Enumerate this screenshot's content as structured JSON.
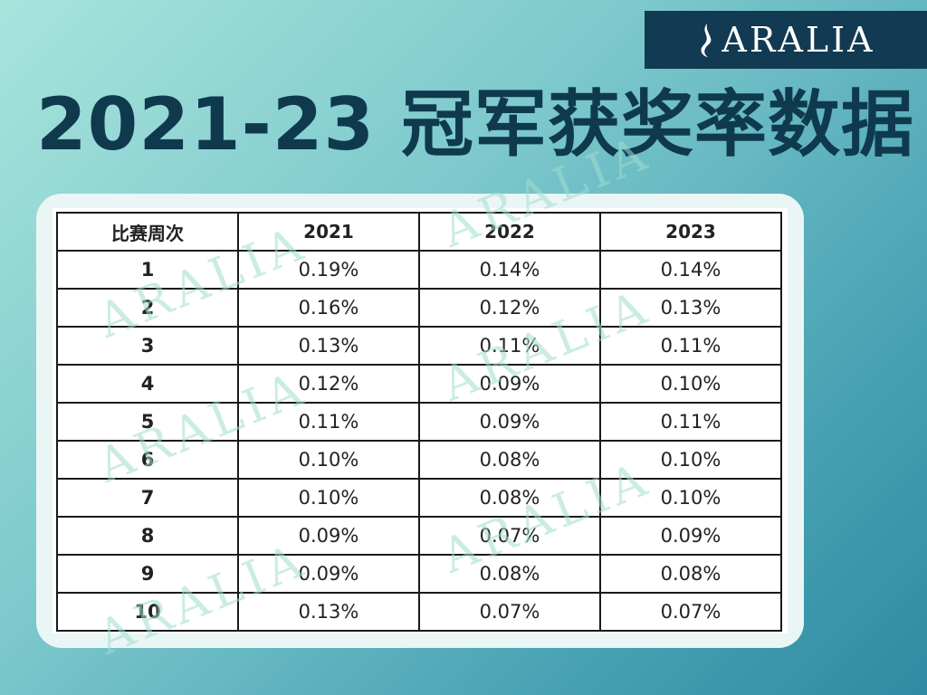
{
  "brand": {
    "name": "ARALIA",
    "icon": "flame-logo-icon"
  },
  "title": "2021-23 冠军获奖率数据",
  "watermark": "ARALIA",
  "table": {
    "headers": [
      "比赛周次",
      "2021",
      "2022",
      "2023"
    ],
    "rows": [
      [
        "1",
        "0.19%",
        "0.14%",
        "0.14%"
      ],
      [
        "2",
        "0.16%",
        "0.12%",
        "0.13%"
      ],
      [
        "3",
        "0.13%",
        "0.11%",
        "0.11%"
      ],
      [
        "4",
        "0.12%",
        "0.09%",
        "0.10%"
      ],
      [
        "5",
        "0.11%",
        "0.09%",
        "0.11%"
      ],
      [
        "6",
        "0.10%",
        "0.08%",
        "0.10%"
      ],
      [
        "7",
        "0.10%",
        "0.08%",
        "0.10%"
      ],
      [
        "8",
        "0.09%",
        "0.07%",
        "0.09%"
      ],
      [
        "9",
        "0.09%",
        "0.08%",
        "0.08%"
      ],
      [
        "10",
        "0.13%",
        "0.07%",
        "0.07%"
      ]
    ]
  },
  "colors": {
    "brand_bar": "#123a52",
    "title_text": "#0f3a4e",
    "panel": "#eaf6f5"
  },
  "chart_data": {
    "type": "table",
    "title": "2021-23 冠军获奖率数据",
    "columns": [
      "比赛周次",
      "2021",
      "2022",
      "2023"
    ],
    "categories": [
      "1",
      "2",
      "3",
      "4",
      "5",
      "6",
      "7",
      "8",
      "9",
      "10"
    ],
    "series": [
      {
        "name": "2021",
        "values": [
          0.19,
          0.16,
          0.13,
          0.12,
          0.11,
          0.1,
          0.1,
          0.09,
          0.09,
          0.13
        ]
      },
      {
        "name": "2022",
        "values": [
          0.14,
          0.12,
          0.11,
          0.09,
          0.09,
          0.08,
          0.08,
          0.07,
          0.08,
          0.07
        ]
      },
      {
        "name": "2023",
        "values": [
          0.14,
          0.13,
          0.11,
          0.1,
          0.11,
          0.1,
          0.1,
          0.09,
          0.08,
          0.07
        ]
      }
    ],
    "unit": "%"
  }
}
